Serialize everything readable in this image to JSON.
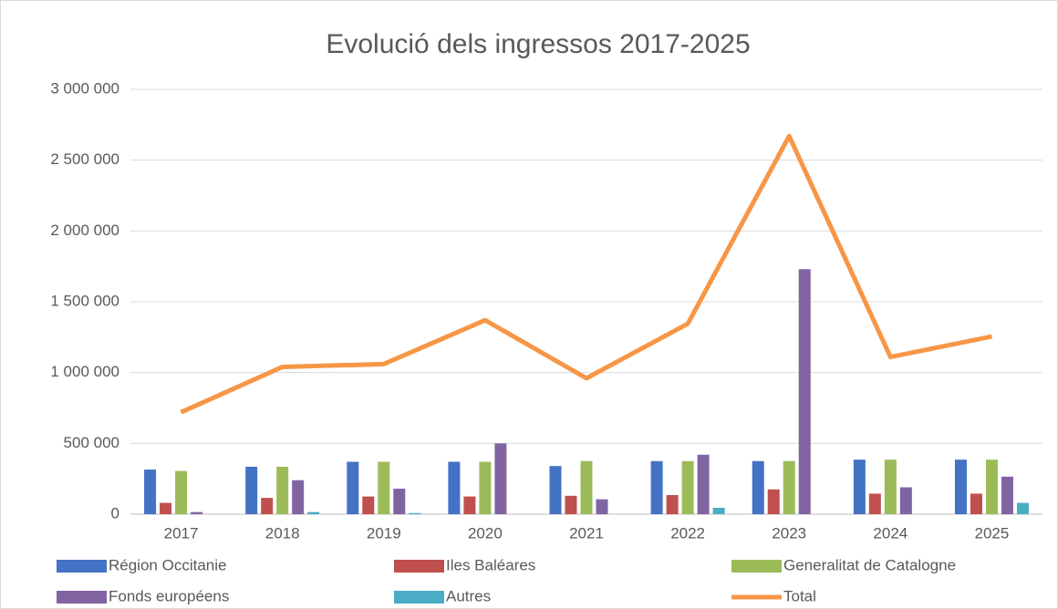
{
  "chart_data": {
    "type": "bar",
    "title": "Evolució dels ingressos 2017-2025",
    "categories": [
      "2017",
      "2018",
      "2019",
      "2020",
      "2021",
      "2022",
      "2023",
      "2024",
      "2025"
    ],
    "series": [
      {
        "name": "Région Occitanie",
        "color": "#4472c4",
        "values": [
          315000,
          335000,
          370000,
          370000,
          340000,
          375000,
          375000,
          385000,
          385000
        ]
      },
      {
        "name": "Iles Baléares",
        "color": "#c0504d",
        "values": [
          80000,
          115000,
          125000,
          125000,
          130000,
          135000,
          175000,
          145000,
          145000
        ]
      },
      {
        "name": "Generalitat de Catalogne",
        "color": "#9bbb59",
        "values": [
          305000,
          335000,
          370000,
          370000,
          375000,
          375000,
          375000,
          385000,
          385000
        ]
      },
      {
        "name": "Fonds européens",
        "color": "#8064a2",
        "values": [
          15000,
          240000,
          180000,
          500000,
          105000,
          420000,
          1730000,
          190000,
          265000
        ]
      },
      {
        "name": "Autres",
        "color": "#4bacc6",
        "values": [
          0,
          15000,
          8000,
          0,
          0,
          45000,
          0,
          0,
          80000
        ]
      },
      {
        "name": "Total",
        "color": "#f79646",
        "type": "line",
        "values": [
          720000,
          1040000,
          1060000,
          1370000,
          960000,
          1345000,
          2670000,
          1110000,
          1255000
        ]
      }
    ],
    "ylim": [
      0,
      3000000
    ],
    "yticks": [
      0,
      {
        "value": 500000,
        "label": "500 000"
      },
      {
        "value": 1000000,
        "label": "1 000 000"
      },
      {
        "value": 1500000,
        "label": "1 500 000"
      },
      {
        "value": 2000000,
        "label": "2 000 000"
      },
      {
        "value": 2500000,
        "label": "2 500 000"
      },
      {
        "value": 3000000,
        "label": "3 000 000"
      }
    ],
    "grid": true,
    "legend": "bottom"
  }
}
